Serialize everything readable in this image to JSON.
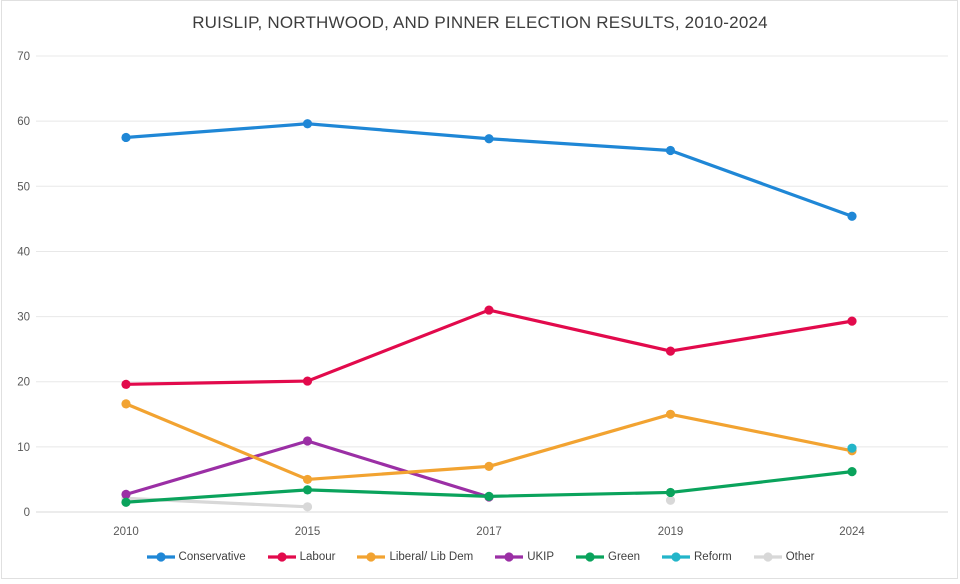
{
  "frame": {
    "background_color": "#ffffff",
    "border_color": "#e0e0e0"
  },
  "chart_data": {
    "type": "line",
    "title": "RUISLIP, NORTHWOOD, AND PINNER ELECTION RESULTS, 2010-2024",
    "xlabel": "",
    "ylabel": "",
    "categories": [
      "2010",
      "2015",
      "2017",
      "2019",
      "2024"
    ],
    "ylim": [
      0,
      70
    ],
    "ytick_step": 10,
    "grid": "horizontal",
    "legend_position": "bottom",
    "axis_label_color": "#595959",
    "gridline_color": "#e8e8e8",
    "zeroline_color": "#d9d9d9",
    "series": [
      {
        "name": "Conservative",
        "color": "#1f87d6",
        "values": [
          57.5,
          59.6,
          57.3,
          55.5,
          45.4
        ]
      },
      {
        "name": "Labour",
        "color": "#e20a4c",
        "values": [
          19.6,
          20.1,
          31.0,
          24.7,
          29.3
        ]
      },
      {
        "name": "Liberal/ Lib Dem",
        "color": "#f2a331",
        "values": [
          16.6,
          5.0,
          7.0,
          15.0,
          9.4
        ]
      },
      {
        "name": "UKIP",
        "color": "#9b2fa5",
        "values": [
          2.7,
          10.9,
          2.3,
          null,
          null
        ]
      },
      {
        "name": "Green",
        "color": "#0aa35c",
        "values": [
          1.5,
          3.4,
          2.4,
          3.0,
          6.2
        ]
      },
      {
        "name": "Reform",
        "color": "#23b5c9",
        "values": [
          null,
          null,
          null,
          null,
          9.8
        ]
      },
      {
        "name": "Other",
        "color": "#d8d8d8",
        "values": [
          2.1,
          0.8,
          null,
          1.8,
          null
        ]
      }
    ]
  }
}
